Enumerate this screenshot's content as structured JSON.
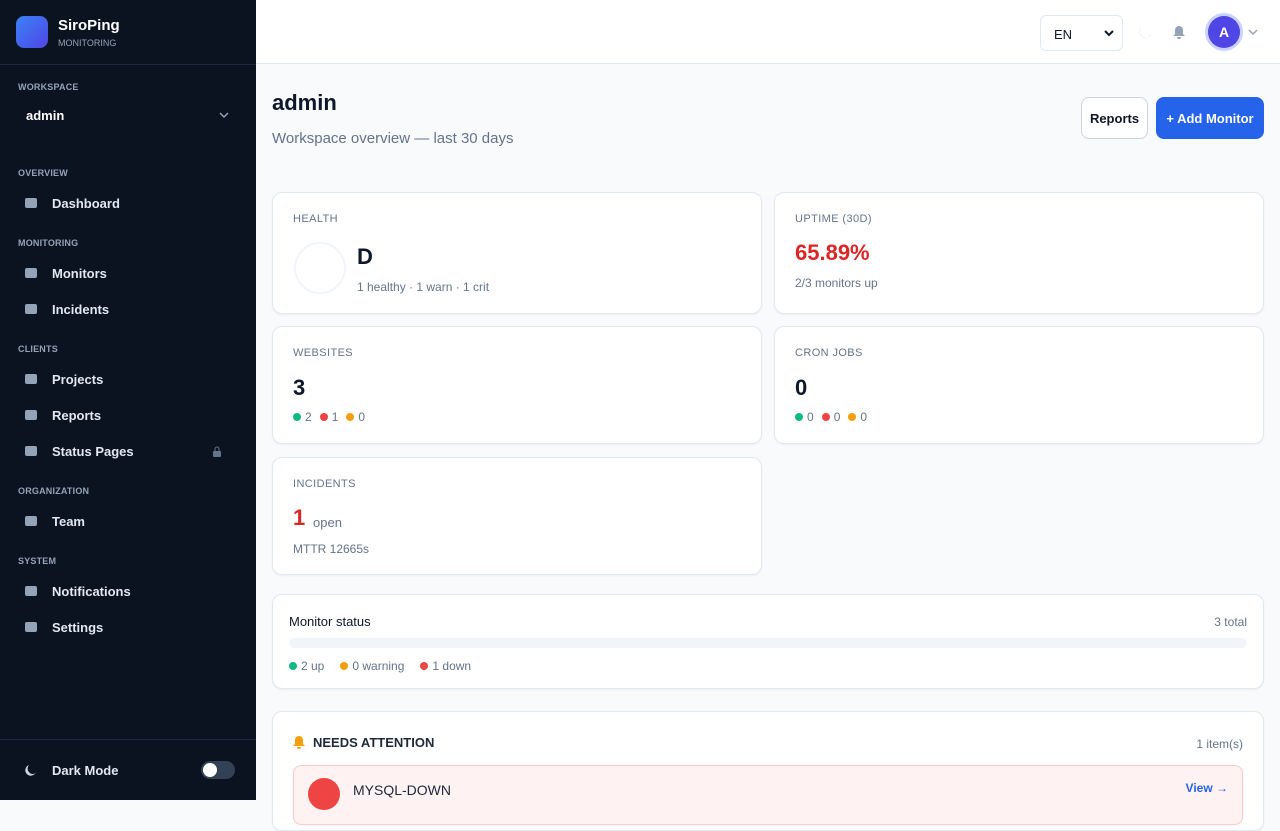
{
  "sidebar": {
    "brand": "SiroPing",
    "tagline": "MONITORING",
    "workspace_label": "WORKSPACE",
    "workspace": "admin",
    "sections": [
      {
        "title": "OVERVIEW",
        "items": [
          "Dashboard"
        ]
      },
      {
        "title": "MONITORING",
        "items": [
          "Monitors",
          "Incidents"
        ]
      },
      {
        "title": "CLIENTS",
        "items": [
          "Projects",
          "Reports",
          "Status Pages"
        ]
      },
      {
        "title": "ORGANIZATION",
        "items": [
          "Team"
        ]
      },
      {
        "title": "SYSTEM",
        "items": [
          "Notifications",
          "Settings"
        ]
      }
    ],
    "dark_mode": "Dark Mode"
  },
  "topbar": {
    "language": "EN",
    "avatar": "A"
  },
  "header": {
    "title": "admin",
    "subtitle": "Workspace overview — last 30 days",
    "buttons": [
      "Reports",
      "+ Add Monitor"
    ]
  },
  "cards": {
    "health": {
      "label": "HEALTH",
      "grade": "D",
      "detail": "1 healthy · 1 warn · 1 crit"
    },
    "uptime": {
      "label": "UPTIME (30D)",
      "value": "65.89%",
      "detail": "2/3 monitors up"
    },
    "websites": {
      "label": "WEBSITES",
      "value": 3,
      "counts": [
        2,
        1,
        0
      ]
    },
    "cron_jobs": {
      "label": "CRON JOBS",
      "value": 0,
      "counts": [
        0,
        0,
        0
      ]
    },
    "incidents": {
      "label": "INCIDENTS",
      "value": 1,
      "unit": "open",
      "detail": "MTTR 12665s"
    }
  },
  "monitor_status": {
    "title": "Monitor status",
    "total": "3 total",
    "legend": [
      "2 up",
      "0 warning",
      "1 down"
    ]
  },
  "attention": {
    "title": "NEEDS ATTENTION",
    "count": "1 item(s)",
    "items": [
      {
        "name": "MYSQL-DOWN",
        "action": "View →"
      }
    ]
  }
}
